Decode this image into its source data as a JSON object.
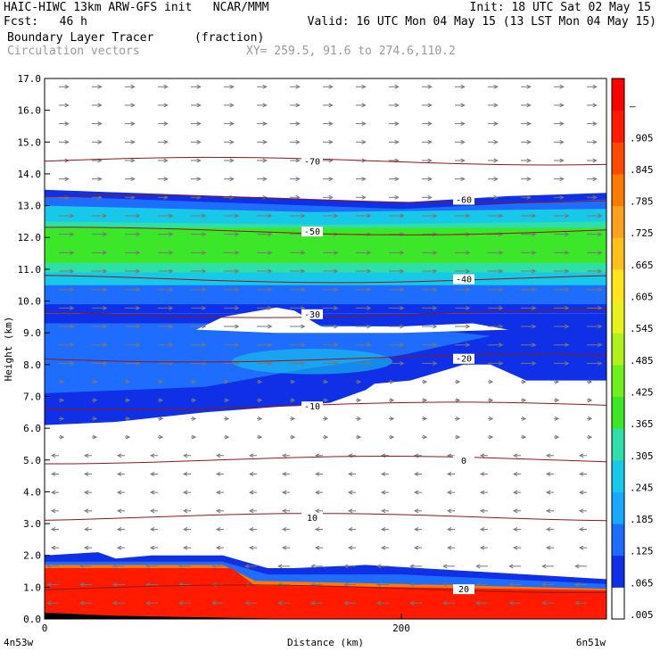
{
  "header": {
    "line1_left": "HAIC-HIWC 13km ARW-GFS init   NCAR/MMM",
    "line1_right": "Init: 18 UTC Sat 02 May 15",
    "line2_left": "Fcst:   46 h",
    "line2_right": "Valid: 16 UTC Mon 04 May 15 (13 LST Mon 04 May 15)",
    "line3_left": "Boundary Layer Tracer",
    "line3_units": "(fraction)",
    "line4_left": "Circulation vectors",
    "line4_xy": "XY= 259.5, 91.6 to 274.6,110.2"
  },
  "colors": {
    "white": "#ffffff",
    "blue_dark": "#1030e8",
    "blue": "#1f6dff",
    "cyan": "#18c8e8",
    "teal": "#2ee0a8",
    "green": "#3ce628",
    "red": "#ff1a00",
    "orange": "#ff7a00",
    "contour": "#8b1a1a",
    "vector": "#777777"
  },
  "chart_data": {
    "type": "heatmap",
    "title": "Boundary Layer Tracer",
    "units": "(fraction)",
    "overlay": "Circulation vectors",
    "xlabel": "Distance (km)",
    "ylabel": "Height (km)",
    "xlim": [
      0,
      315
    ],
    "ylim": [
      0,
      17
    ],
    "x_ticks": [
      0,
      200
    ],
    "x_tick_labels": [
      "0",
      "200"
    ],
    "x_endpoint_labels": [
      "4n53w",
      "6n51w"
    ],
    "y_ticks": [
      0.0,
      1.0,
      2.0,
      3.0,
      4.0,
      5.0,
      6.0,
      7.0,
      8.0,
      9.0,
      10.0,
      11.0,
      12.0,
      13.0,
      14.0,
      15.0,
      16.0,
      17.0
    ],
    "y_tick_labels": [
      "0.0",
      "1.0",
      "2.0",
      "3.0",
      "4.0",
      "5.0",
      "6.0",
      "7.0",
      "8.0",
      "9.0",
      "10.0",
      "11.0",
      "12.0",
      "13.0",
      "14.0",
      "15.0",
      "16.0",
      "17.0"
    ],
    "colorbar_labels": [
      ".005",
      ".065",
      ".125",
      ".185",
      ".245",
      ".305",
      ".365",
      ".425",
      ".485",
      ".545",
      ".605",
      ".665",
      ".725",
      ".785",
      ".845",
      ".905",
      "–"
    ],
    "temperature_contours": [
      {
        "label": "-70",
        "level_km": 14.4
      },
      {
        "label": "-60",
        "level_km": 13.2
      },
      {
        "label": "-50",
        "level_km": 12.2
      },
      {
        "label": "-40",
        "level_km": 10.7
      },
      {
        "label": "-30",
        "level_km": 9.6
      },
      {
        "label": "-20",
        "level_km": 8.2
      },
      {
        "label": "-10",
        "level_km": 6.7
      },
      {
        "label": "0",
        "level_km": 5.0
      },
      {
        "label": "10",
        "level_km": 3.2
      },
      {
        "label": "20",
        "level_km": 0.95
      }
    ]
  }
}
